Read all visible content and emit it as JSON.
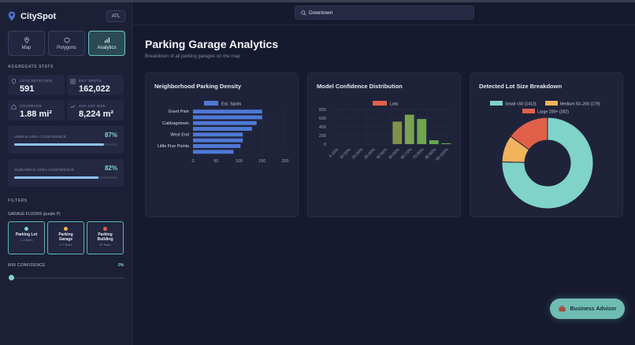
{
  "app": {
    "name": "CitySpot",
    "city": "ATL"
  },
  "view_tabs": [
    {
      "label": "Map",
      "icon": "map-pin-icon",
      "active": false
    },
    {
      "label": "Polygons",
      "icon": "hexagon-icon",
      "active": false
    },
    {
      "label": "Analytics",
      "icon": "bar-chart-icon",
      "active": true
    }
  ],
  "aggregate": {
    "title": "AGGREGATE STATS",
    "lots_detected": {
      "label": "LOTS DETECTED",
      "value": "591"
    },
    "est_spots": {
      "label": "EST. SPOTS",
      "value": "162,022"
    },
    "coverage": {
      "label": "COVERAGE",
      "value": "1.88 mi²"
    },
    "avg_lot_size": {
      "label": "AVG LOT SIZE",
      "value": "8,224 m²"
    }
  },
  "confidence": {
    "urban": {
      "label": "URBAN AREA CONFIDENCE",
      "value": "87%",
      "fraction": 0.87
    },
    "suburban": {
      "label": "SUBURBAN AREA CONFIDENCE",
      "value": "82%",
      "fraction": 0.82
    }
  },
  "filters": {
    "title": "FILTERS",
    "floors_label": "GARAGE FLOORS (purple P)",
    "floor_options": [
      {
        "name_line1": "Parking Lot",
        "name_line2": "",
        "sub": "1–3 floors",
        "color": "#7fd3c8"
      },
      {
        "name_line1": "Parking",
        "name_line2": "Garage",
        "sub": "4–7 floors",
        "color": "#f1b35b"
      },
      {
        "name_line1": "Parking",
        "name_line2": "Building",
        "sub": "8+ floors",
        "color": "#e0604a"
      }
    ],
    "min_confidence_label": "MIN CONFIDENCE",
    "min_confidence_value": "0%",
    "min_confidence_fraction": 0
  },
  "search": {
    "value": "Downtown"
  },
  "page": {
    "title": "Parking Garage Analytics",
    "subtitle": "Breakdown of all parking garages on the map"
  },
  "charts": {
    "density": {
      "title": "Neighborhood Parking Density"
    },
    "confidence": {
      "title": "Model Confidence Distribution"
    },
    "lotsize": {
      "title": "Detected Lot Size Breakdown"
    }
  },
  "chart_data": [
    {
      "type": "bar",
      "orientation": "horizontal",
      "title": "Neighborhood Parking Density",
      "categories": [
        "Grant Park",
        "",
        "Cabbagetown",
        "",
        "West End",
        "",
        "Little Five Points",
        ""
      ],
      "series": [
        {
          "name": "Est. Spots",
          "values": [
            150,
            150,
            138,
            128,
            108,
            108,
            103,
            88
          ],
          "color": "#4f78d6"
        }
      ],
      "xlim": [
        0,
        200
      ],
      "xticks": [
        "0",
        "50",
        "100",
        "150",
        "200"
      ],
      "grid": true,
      "legend": "top"
    },
    {
      "type": "bar",
      "title": "Model Confidence Distribution",
      "categories": [
        "0-10%",
        "10-20%",
        "20-30%",
        "30-40%",
        "40-50%",
        "50-60%",
        "60-70%",
        "70-80%",
        "80-90%",
        "90-100%"
      ],
      "series": [
        {
          "name": "Lots",
          "values": [
            0,
            0,
            0,
            0,
            0,
            520,
            680,
            580,
            90,
            20
          ],
          "colors": [
            "#6f8a45",
            "#6f8a45",
            "#6f8a45",
            "#6f8a45",
            "#6f8a45",
            "#80914b",
            "#79a351",
            "#6fa64e",
            "#68a84c",
            "#5bb05a"
          ]
        }
      ],
      "ylim": [
        0,
        800
      ],
      "yticks": [
        "0",
        "200",
        "400",
        "600",
        "800"
      ],
      "grid": true,
      "legend": "top"
    },
    {
      "type": "pie",
      "subtype": "doughnut",
      "title": "Detected Lot Size Breakdown",
      "slices": [
        {
          "label": "Small <50 (1413)",
          "value": 1413,
          "color": "#7fd3c8"
        },
        {
          "label": "Medium 50–200 (179)",
          "value": 179,
          "color": "#f1b35b"
        },
        {
          "label": "Large 200+ (282)",
          "value": 282,
          "color": "#e0604a"
        }
      ],
      "legend": "top"
    }
  ],
  "advisor": {
    "label": "Business Advisor",
    "icon": "briefcase-icon"
  }
}
